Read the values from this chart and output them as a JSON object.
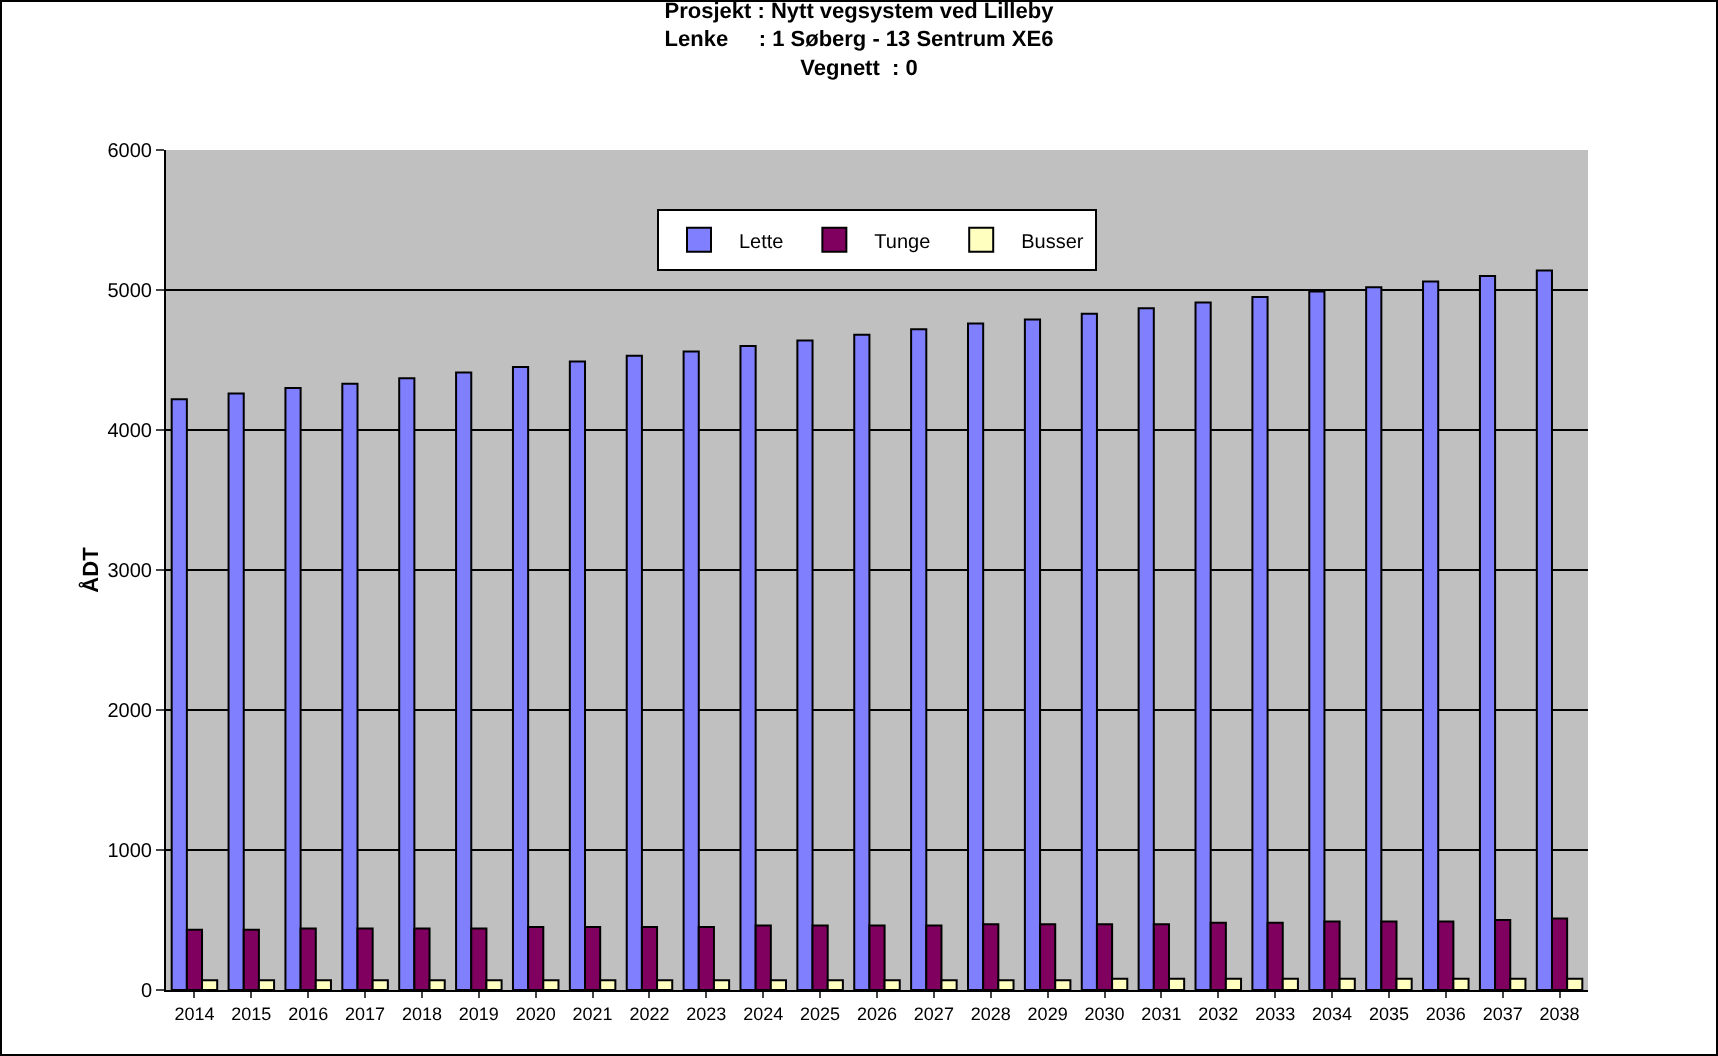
{
  "chart_data": {
    "type": "bar",
    "title": "Prosjekt : Nytt vegsystem ved Lilleby\nLenke     : 1 Søberg - 13 Sentrum XE6\nVegnett  : 0",
    "ylabel": "ÅDT",
    "categories": [
      "2014",
      "2015",
      "2016",
      "2017",
      "2018",
      "2019",
      "2020",
      "2021",
      "2022",
      "2023",
      "2024",
      "2025",
      "2026",
      "2027",
      "2028",
      "2029",
      "2030",
      "2031",
      "2032",
      "2033",
      "2034",
      "2035",
      "2036",
      "2037",
      "2038"
    ],
    "series": [
      {
        "name": "Lette",
        "color": "#8080ff",
        "values": [
          4220,
          4260,
          4300,
          4330,
          4370,
          4410,
          4450,
          4490,
          4530,
          4560,
          4600,
          4640,
          4680,
          4720,
          4760,
          4790,
          4830,
          4870,
          4910,
          4950,
          4990,
          5020,
          5060,
          5100,
          5140
        ]
      },
      {
        "name": "Tunge",
        "color": "#800060",
        "values": [
          430,
          430,
          440,
          440,
          440,
          440,
          450,
          450,
          450,
          450,
          460,
          460,
          460,
          460,
          470,
          470,
          470,
          470,
          480,
          480,
          490,
          490,
          490,
          500,
          510
        ]
      },
      {
        "name": "Busser",
        "color": "#ffffc0",
        "values": [
          70,
          70,
          70,
          70,
          70,
          70,
          70,
          70,
          70,
          70,
          70,
          70,
          70,
          70,
          70,
          70,
          80,
          80,
          80,
          80,
          80,
          80,
          80,
          80,
          80
        ]
      }
    ],
    "ylim": [
      0,
      6000
    ],
    "yticks": [
      0,
      1000,
      2000,
      3000,
      4000,
      5000,
      6000
    ],
    "grid": "y",
    "legend": "top"
  }
}
